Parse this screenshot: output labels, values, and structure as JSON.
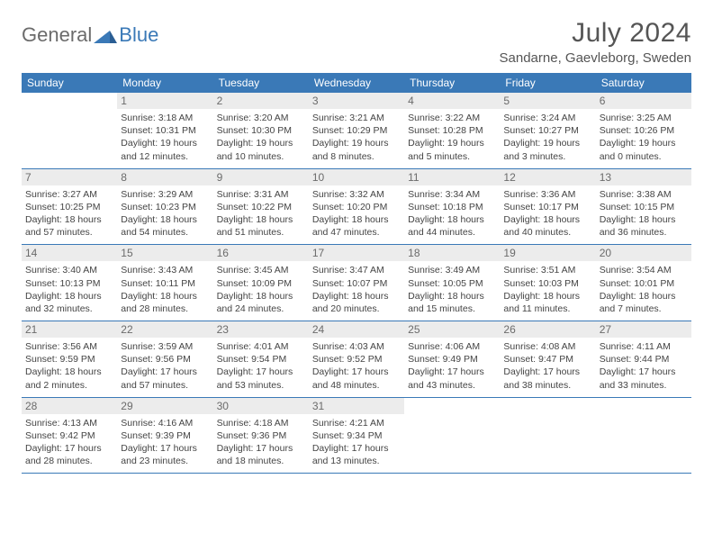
{
  "brand": {
    "part1": "General",
    "part2": "Blue"
  },
  "title": "July 2024",
  "location": "Sandarne, Gaevleborg, Sweden",
  "colors": {
    "header_bg": "#3a79b7",
    "header_text": "#ffffff",
    "daynum_bg": "#ececec",
    "daynum_text": "#6b6b6b",
    "body_text": "#444444",
    "title_text": "#555555",
    "rule": "#3a79b7"
  },
  "fonts": {
    "title_size": 30,
    "location_size": 15,
    "header_size": 12,
    "cell_size": 10.5
  },
  "day_names": [
    "Sunday",
    "Monday",
    "Tuesday",
    "Wednesday",
    "Thursday",
    "Friday",
    "Saturday"
  ],
  "weeks": [
    [
      {
        "n": "",
        "sr": "",
        "ss": "",
        "dl": ""
      },
      {
        "n": "1",
        "sr": "3:18 AM",
        "ss": "10:31 PM",
        "dl": "19 hours and 12 minutes."
      },
      {
        "n": "2",
        "sr": "3:20 AM",
        "ss": "10:30 PM",
        "dl": "19 hours and 10 minutes."
      },
      {
        "n": "3",
        "sr": "3:21 AM",
        "ss": "10:29 PM",
        "dl": "19 hours and 8 minutes."
      },
      {
        "n": "4",
        "sr": "3:22 AM",
        "ss": "10:28 PM",
        "dl": "19 hours and 5 minutes."
      },
      {
        "n": "5",
        "sr": "3:24 AM",
        "ss": "10:27 PM",
        "dl": "19 hours and 3 minutes."
      },
      {
        "n": "6",
        "sr": "3:25 AM",
        "ss": "10:26 PM",
        "dl": "19 hours and 0 minutes."
      }
    ],
    [
      {
        "n": "7",
        "sr": "3:27 AM",
        "ss": "10:25 PM",
        "dl": "18 hours and 57 minutes."
      },
      {
        "n": "8",
        "sr": "3:29 AM",
        "ss": "10:23 PM",
        "dl": "18 hours and 54 minutes."
      },
      {
        "n": "9",
        "sr": "3:31 AM",
        "ss": "10:22 PM",
        "dl": "18 hours and 51 minutes."
      },
      {
        "n": "10",
        "sr": "3:32 AM",
        "ss": "10:20 PM",
        "dl": "18 hours and 47 minutes."
      },
      {
        "n": "11",
        "sr": "3:34 AM",
        "ss": "10:18 PM",
        "dl": "18 hours and 44 minutes."
      },
      {
        "n": "12",
        "sr": "3:36 AM",
        "ss": "10:17 PM",
        "dl": "18 hours and 40 minutes."
      },
      {
        "n": "13",
        "sr": "3:38 AM",
        "ss": "10:15 PM",
        "dl": "18 hours and 36 minutes."
      }
    ],
    [
      {
        "n": "14",
        "sr": "3:40 AM",
        "ss": "10:13 PM",
        "dl": "18 hours and 32 minutes."
      },
      {
        "n": "15",
        "sr": "3:43 AM",
        "ss": "10:11 PM",
        "dl": "18 hours and 28 minutes."
      },
      {
        "n": "16",
        "sr": "3:45 AM",
        "ss": "10:09 PM",
        "dl": "18 hours and 24 minutes."
      },
      {
        "n": "17",
        "sr": "3:47 AM",
        "ss": "10:07 PM",
        "dl": "18 hours and 20 minutes."
      },
      {
        "n": "18",
        "sr": "3:49 AM",
        "ss": "10:05 PM",
        "dl": "18 hours and 15 minutes."
      },
      {
        "n": "19",
        "sr": "3:51 AM",
        "ss": "10:03 PM",
        "dl": "18 hours and 11 minutes."
      },
      {
        "n": "20",
        "sr": "3:54 AM",
        "ss": "10:01 PM",
        "dl": "18 hours and 7 minutes."
      }
    ],
    [
      {
        "n": "21",
        "sr": "3:56 AM",
        "ss": "9:59 PM",
        "dl": "18 hours and 2 minutes."
      },
      {
        "n": "22",
        "sr": "3:59 AM",
        "ss": "9:56 PM",
        "dl": "17 hours and 57 minutes."
      },
      {
        "n": "23",
        "sr": "4:01 AM",
        "ss": "9:54 PM",
        "dl": "17 hours and 53 minutes."
      },
      {
        "n": "24",
        "sr": "4:03 AM",
        "ss": "9:52 PM",
        "dl": "17 hours and 48 minutes."
      },
      {
        "n": "25",
        "sr": "4:06 AM",
        "ss": "9:49 PM",
        "dl": "17 hours and 43 minutes."
      },
      {
        "n": "26",
        "sr": "4:08 AM",
        "ss": "9:47 PM",
        "dl": "17 hours and 38 minutes."
      },
      {
        "n": "27",
        "sr": "4:11 AM",
        "ss": "9:44 PM",
        "dl": "17 hours and 33 minutes."
      }
    ],
    [
      {
        "n": "28",
        "sr": "4:13 AM",
        "ss": "9:42 PM",
        "dl": "17 hours and 28 minutes."
      },
      {
        "n": "29",
        "sr": "4:16 AM",
        "ss": "9:39 PM",
        "dl": "17 hours and 23 minutes."
      },
      {
        "n": "30",
        "sr": "4:18 AM",
        "ss": "9:36 PM",
        "dl": "17 hours and 18 minutes."
      },
      {
        "n": "31",
        "sr": "4:21 AM",
        "ss": "9:34 PM",
        "dl": "17 hours and 13 minutes."
      },
      {
        "n": "",
        "sr": "",
        "ss": "",
        "dl": ""
      },
      {
        "n": "",
        "sr": "",
        "ss": "",
        "dl": ""
      },
      {
        "n": "",
        "sr": "",
        "ss": "",
        "dl": ""
      }
    ]
  ],
  "labels": {
    "sunrise": "Sunrise: ",
    "sunset": "Sunset: ",
    "daylight": "Daylight: "
  }
}
